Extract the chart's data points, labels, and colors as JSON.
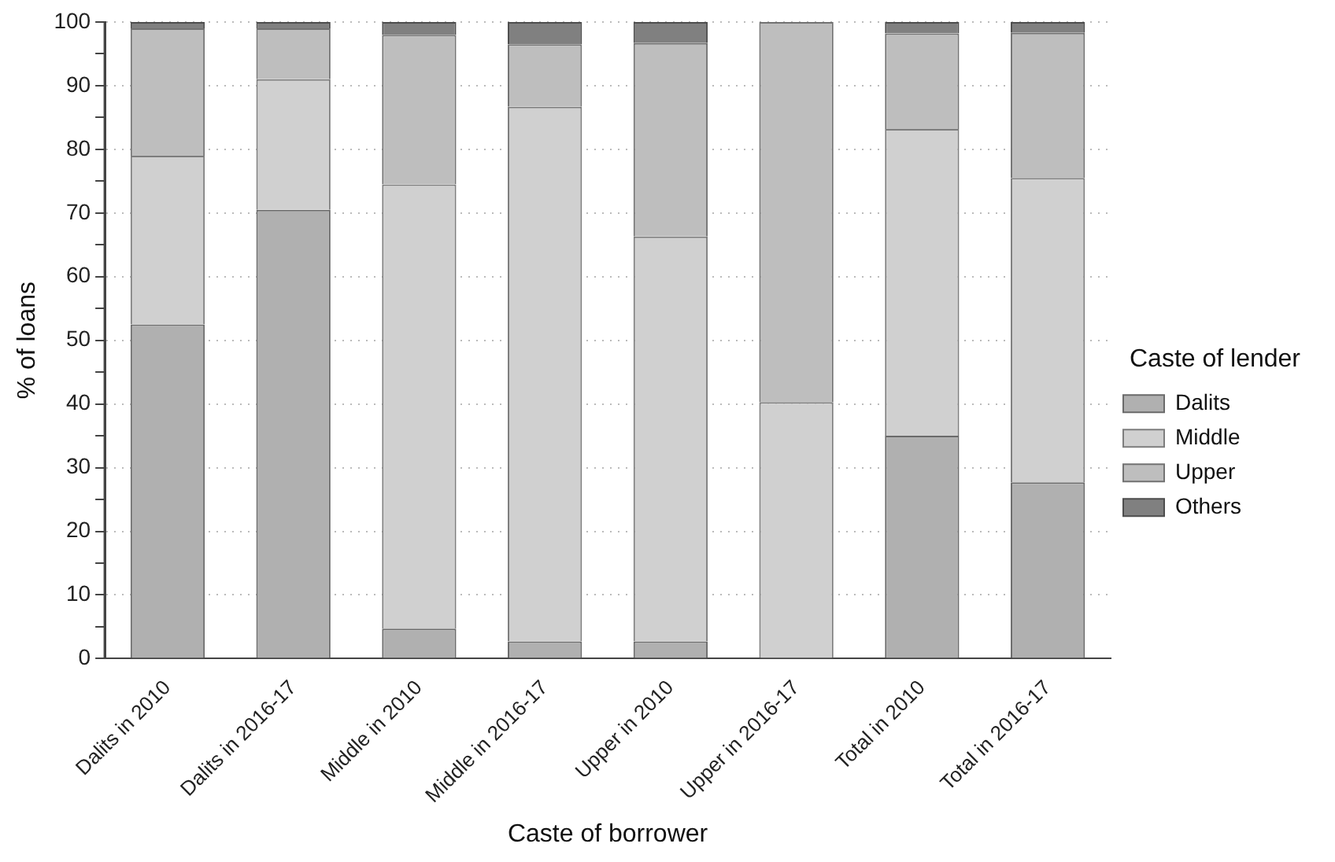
{
  "chart_data": {
    "type": "bar",
    "stacked": true,
    "xlabel": "Caste of borrower",
    "ylabel": "% of loans",
    "legend_title": "Caste of lender",
    "legend": "right",
    "grid": "y",
    "categories": [
      "Dalits in 2010",
      "Dalits in 2016-17",
      "Middle in 2010",
      "Middle in 2016-17",
      "Upper in 2010",
      "Upper in 2016-17",
      "Total in 2010",
      "Total in 2016-17"
    ],
    "series": [
      {
        "name": "Dalits",
        "color": "#b0b0b0",
        "values": [
          52.5,
          70.5,
          4.7,
          2.7,
          2.7,
          0,
          35,
          27.7
        ]
      },
      {
        "name": "Middle",
        "color": "#d0d0d0",
        "values": [
          26.5,
          20.5,
          69.8,
          84,
          63.6,
          40.3,
          48.2,
          47.8
        ]
      },
      {
        "name": "Upper",
        "color": "#bebebe",
        "values": [
          20,
          8,
          23.5,
          9.8,
          30.4,
          59.7,
          15,
          22.8
        ]
      },
      {
        "name": "Others",
        "color": "#808080",
        "values": [
          1,
          1,
          2,
          3.5,
          3.3,
          0,
          1.8,
          1.7
        ]
      }
    ],
    "ylim": [
      0,
      100
    ],
    "yticks": [
      0,
      {
        "value": 5,
        "label": null
      },
      10,
      {
        "value": 15,
        "label": null
      },
      20,
      {
        "value": 25,
        "label": null
      },
      30,
      {
        "value": 35,
        "label": null
      },
      40,
      {
        "value": 45,
        "label": null
      },
      50,
      {
        "value": 55,
        "label": null
      },
      60,
      {
        "value": 65,
        "label": null
      },
      70,
      {
        "value": 75,
        "label": null
      },
      80,
      {
        "value": 85,
        "label": null
      },
      90,
      {
        "value": 95,
        "label": null
      },
      100
    ]
  }
}
